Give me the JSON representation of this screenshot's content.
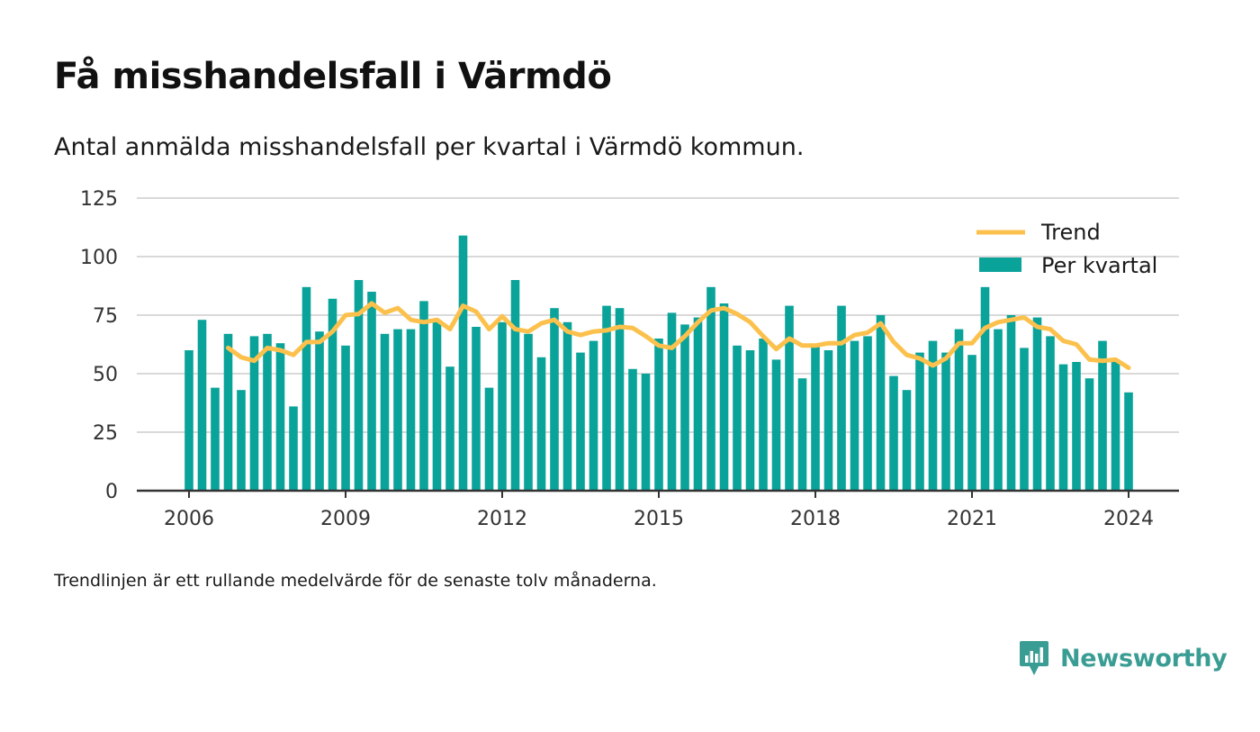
{
  "header": {
    "title": "Få misshandelsfall i Värmdö",
    "subtitle": "Antal anmälda misshandelsfall per kvartal i Värmdö kommun."
  },
  "footer": {
    "note": "Trendlinjen är ett rullande medelvärde för de senaste tolv månaderna.",
    "brand": "Newsworthy"
  },
  "colors": {
    "bar": "#0aa39a",
    "trend": "#fcc14c",
    "grid": "#d9d9d9",
    "axis": "#333333",
    "brand": "#3a9d94"
  },
  "chart_data": {
    "type": "bar",
    "ylim": [
      0,
      125
    ],
    "yticks": [
      0,
      25,
      50,
      75,
      100,
      125
    ],
    "xtick_labels": [
      "2006",
      "2009",
      "2012",
      "2015",
      "2018",
      "2021",
      "2024"
    ],
    "grid": true,
    "legend_position": "top-right",
    "legend": [
      "Trend",
      "Per kvartal"
    ],
    "series": [
      {
        "name": "Per kvartal",
        "type": "bar",
        "quarters": [
          "2006-Q1",
          "2006-Q2",
          "2006-Q3",
          "2006-Q4",
          "2007-Q1",
          "2007-Q2",
          "2007-Q3",
          "2007-Q4",
          "2008-Q1",
          "2008-Q2",
          "2008-Q3",
          "2008-Q4",
          "2009-Q1",
          "2009-Q2",
          "2009-Q3",
          "2009-Q4",
          "2010-Q1",
          "2010-Q2",
          "2010-Q3",
          "2010-Q4",
          "2011-Q1",
          "2011-Q2",
          "2011-Q3",
          "2011-Q4",
          "2012-Q1",
          "2012-Q2",
          "2012-Q3",
          "2012-Q4",
          "2013-Q1",
          "2013-Q2",
          "2013-Q3",
          "2013-Q4",
          "2014-Q1",
          "2014-Q2",
          "2014-Q3",
          "2014-Q4",
          "2015-Q1",
          "2015-Q2",
          "2015-Q3",
          "2015-Q4",
          "2016-Q1",
          "2016-Q2",
          "2016-Q3",
          "2016-Q4",
          "2017-Q1",
          "2017-Q2",
          "2017-Q3",
          "2017-Q4",
          "2018-Q1",
          "2018-Q2",
          "2018-Q3",
          "2018-Q4",
          "2019-Q1",
          "2019-Q2",
          "2019-Q3",
          "2019-Q4",
          "2020-Q1",
          "2020-Q2",
          "2020-Q3",
          "2020-Q4",
          "2021-Q1",
          "2021-Q2",
          "2021-Q3",
          "2021-Q4",
          "2022-Q1",
          "2022-Q2",
          "2022-Q3",
          "2022-Q4",
          "2023-Q1",
          "2023-Q2",
          "2023-Q3",
          "2023-Q4",
          "2024-Q1"
        ],
        "values": [
          60,
          73,
          44,
          67,
          43,
          66,
          67,
          63,
          36,
          87,
          68,
          82,
          62,
          90,
          85,
          67,
          69,
          69,
          81,
          73,
          53,
          109,
          70,
          44,
          72,
          90,
          67,
          57,
          78,
          72,
          59,
          64,
          79,
          78,
          52,
          50,
          65,
          76,
          71,
          74,
          87,
          80,
          62,
          60,
          65,
          56,
          79,
          48,
          62,
          60,
          79,
          64,
          66,
          75,
          49,
          43,
          59,
          64,
          59,
          69,
          58,
          87,
          69,
          75,
          61,
          74,
          66,
          54,
          55,
          48,
          64,
          56,
          42
        ]
      },
      {
        "name": "Trend",
        "type": "line",
        "quarters": [
          "2006-Q4",
          "2007-Q1",
          "2007-Q2",
          "2007-Q3",
          "2007-Q4",
          "2008-Q1",
          "2008-Q2",
          "2008-Q3",
          "2008-Q4",
          "2009-Q1",
          "2009-Q2",
          "2009-Q3",
          "2009-Q4",
          "2010-Q1",
          "2010-Q2",
          "2010-Q3",
          "2010-Q4",
          "2011-Q1",
          "2011-Q2",
          "2011-Q3",
          "2011-Q4",
          "2012-Q1",
          "2012-Q2",
          "2012-Q3",
          "2012-Q4",
          "2013-Q1",
          "2013-Q2",
          "2013-Q3",
          "2013-Q4",
          "2014-Q1",
          "2014-Q2",
          "2014-Q3",
          "2014-Q4",
          "2015-Q1",
          "2015-Q2",
          "2015-Q3",
          "2015-Q4",
          "2016-Q1",
          "2016-Q2",
          "2016-Q3",
          "2016-Q4",
          "2017-Q1",
          "2017-Q2",
          "2017-Q3",
          "2017-Q4",
          "2018-Q1",
          "2018-Q2",
          "2018-Q3",
          "2018-Q4",
          "2019-Q1",
          "2019-Q2",
          "2019-Q3",
          "2019-Q4",
          "2020-Q1",
          "2020-Q2",
          "2020-Q3",
          "2020-Q4",
          "2021-Q1",
          "2021-Q2",
          "2021-Q3",
          "2021-Q4",
          "2022-Q1",
          "2022-Q2",
          "2022-Q3",
          "2022-Q4",
          "2023-Q1",
          "2023-Q2",
          "2023-Q3",
          "2023-Q4",
          "2024-Q1"
        ],
        "values": [
          61,
          57,
          55.5,
          61,
          60,
          58,
          63.5,
          63.5,
          68,
          75,
          75.5,
          80,
          76,
          78,
          73,
          72,
          73,
          69,
          79,
          76.5,
          69,
          74.5,
          69,
          68,
          71.5,
          73,
          68,
          66.5,
          68,
          68.5,
          70,
          69.5,
          66,
          62,
          61,
          66,
          72,
          77,
          78,
          75.5,
          72,
          66,
          60.5,
          65,
          62,
          62,
          63,
          63,
          66.5,
          67.5,
          71.5,
          63.5,
          58,
          56.5,
          53.5,
          56.5,
          63,
          63,
          69.5,
          72,
          73,
          74,
          70,
          69,
          64,
          62.5,
          56,
          55.5,
          56,
          52.5
        ]
      }
    ]
  }
}
